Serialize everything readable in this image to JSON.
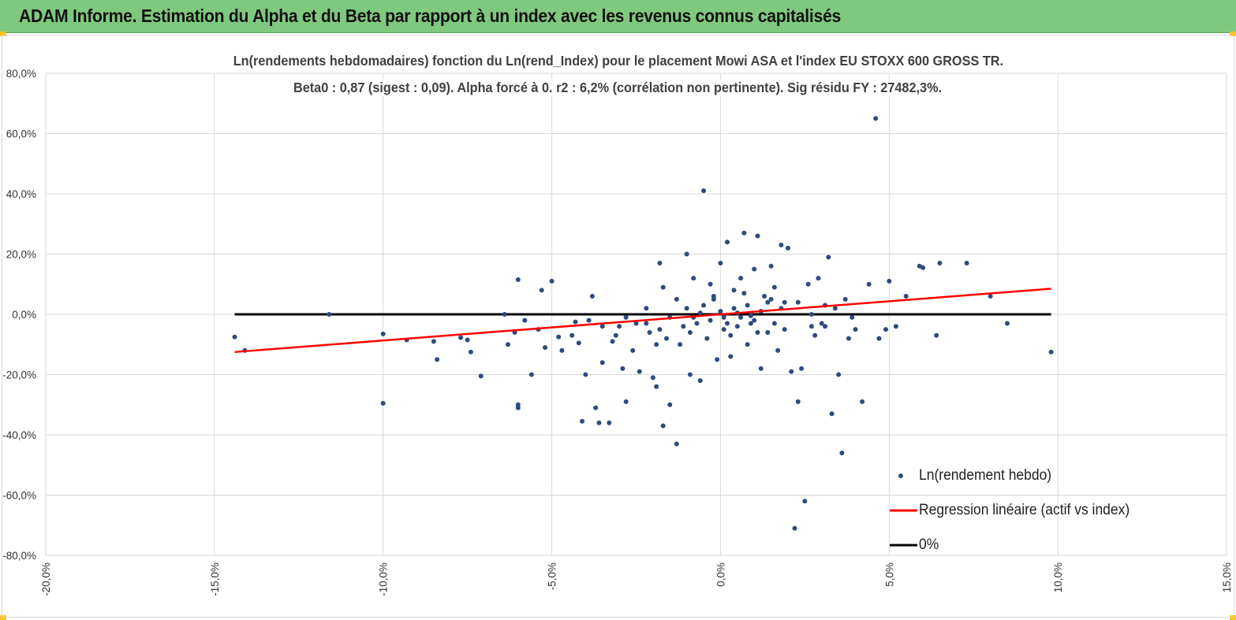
{
  "header": {
    "title": "ADAM Informe. Estimation du Alpha et du Beta par rapport à un index avec les revenus connus capitalisés"
  },
  "chart_data": {
    "type": "scatter",
    "title": "Ln(rendements hebdomadaires) fonction du Ln(rend_Index) pour le placement Mowi ASA et l'index EU STOXX 600 GROSS TR.",
    "subtitle": "Beta0 : 0,87 (sigest : 0,09). Alpha forcé à 0. r2 : 6,2% (corrélation non pertinente). Sig résidu FY : 27482,3%.",
    "xlabel": "",
    "ylabel": "",
    "xlim": [
      -20,
      15
    ],
    "ylim": [
      -80,
      80
    ],
    "x_ticks": [
      "-20,0%",
      "-15,0%",
      "-10,0%",
      "-5,0%",
      "0,0%",
      "5,0%",
      "10,0%",
      "15,0%"
    ],
    "y_ticks": [
      "80,0%",
      "60,0%",
      "40,0%",
      "20,0%",
      "0,0%",
      "-20,0%",
      "-40,0%",
      "-60,0%",
      "-80,0%"
    ],
    "grid": true,
    "legend_position": "bottom-right",
    "colors": {
      "points": "#2e4a7d",
      "regression": "#ff0000",
      "zero": "#000000",
      "header_bg": "#7fc97f"
    },
    "legend": [
      "Ln(rendement hebdo)",
      "Regression linéaire (actif vs index)",
      "0%"
    ],
    "series": [
      {
        "name": "Ln(rendement hebdo)",
        "points": [
          [
            -14.4,
            -7.5
          ],
          [
            -14.1,
            -12
          ],
          [
            -11.6,
            0
          ],
          [
            -10.0,
            -6.5
          ],
          [
            -10.0,
            -29.5
          ],
          [
            -9.3,
            -8.5
          ],
          [
            -8.5,
            -9
          ],
          [
            -8.4,
            -15
          ],
          [
            -7.7,
            -7.7
          ],
          [
            -7.5,
            -8.5
          ],
          [
            -7.4,
            -12.5
          ],
          [
            -7.1,
            -20.5
          ],
          [
            -6.4,
            0
          ],
          [
            -6.3,
            -10
          ],
          [
            -6.1,
            -6
          ],
          [
            -6.0,
            11.5
          ],
          [
            -6.0,
            -31
          ],
          [
            -6.0,
            -30
          ],
          [
            -5.8,
            -2
          ],
          [
            -5.6,
            -20
          ],
          [
            -5.4,
            -5
          ],
          [
            -5.3,
            8
          ],
          [
            -5.2,
            -11
          ],
          [
            -5.0,
            11
          ],
          [
            -4.8,
            -7.5
          ],
          [
            -4.7,
            -12
          ],
          [
            -4.4,
            -7
          ],
          [
            -4.3,
            -2.5
          ],
          [
            -4.2,
            -9.5
          ],
          [
            -4.1,
            -35.5
          ],
          [
            -4.0,
            -20
          ],
          [
            -3.9,
            -2
          ],
          [
            -3.8,
            6
          ],
          [
            -3.7,
            -31
          ],
          [
            -3.6,
            -36
          ],
          [
            -3.5,
            -16
          ],
          [
            -3.3,
            -36
          ],
          [
            -3.2,
            -9
          ],
          [
            -3.1,
            -7
          ],
          [
            -3.0,
            -4
          ],
          [
            -2.9,
            -18
          ],
          [
            -2.8,
            -29
          ],
          [
            -2.6,
            -12
          ],
          [
            -2.4,
            -19
          ],
          [
            -2.2,
            -3
          ],
          [
            -2.1,
            -6
          ],
          [
            -2.0,
            -21
          ],
          [
            -1.9,
            -10
          ],
          [
            -1.9,
            -24
          ],
          [
            -1.8,
            17
          ],
          [
            -1.7,
            9
          ],
          [
            -1.7,
            -37
          ],
          [
            -1.6,
            -8
          ],
          [
            -1.5,
            -30
          ],
          [
            -1.3,
            -43
          ],
          [
            -1.2,
            -10
          ],
          [
            -1.1,
            -4
          ],
          [
            -1.0,
            20
          ],
          [
            -0.9,
            -20
          ],
          [
            -0.8,
            12
          ],
          [
            -0.7,
            -3
          ],
          [
            -0.6,
            -22
          ],
          [
            -0.5,
            41
          ],
          [
            -0.4,
            -8
          ],
          [
            -0.3,
            10
          ],
          [
            -0.2,
            5
          ],
          [
            -0.1,
            -15
          ],
          [
            0.0,
            17
          ],
          [
            0.1,
            -5
          ],
          [
            0.2,
            24
          ],
          [
            0.3,
            -14
          ],
          [
            0.4,
            8
          ],
          [
            0.5,
            -4
          ],
          [
            0.6,
            12
          ],
          [
            0.7,
            27
          ],
          [
            0.8,
            -10
          ],
          [
            0.9,
            -3
          ],
          [
            1.0,
            15
          ],
          [
            1.1,
            26
          ],
          [
            1.2,
            -18
          ],
          [
            1.3,
            6
          ],
          [
            1.4,
            -6
          ],
          [
            1.5,
            16
          ],
          [
            1.6,
            9
          ],
          [
            1.7,
            -12
          ],
          [
            1.8,
            23
          ],
          [
            1.9,
            4
          ],
          [
            2.0,
            22
          ],
          [
            2.1,
            -19
          ],
          [
            2.2,
            -71
          ],
          [
            2.3,
            -29
          ],
          [
            2.4,
            -18
          ],
          [
            2.5,
            -62
          ],
          [
            2.6,
            10
          ],
          [
            2.7,
            0
          ],
          [
            2.8,
            -7
          ],
          [
            2.9,
            12
          ],
          [
            3.0,
            -3
          ],
          [
            3.1,
            -4
          ],
          [
            3.2,
            19
          ],
          [
            3.3,
            -33
          ],
          [
            3.4,
            2
          ],
          [
            3.5,
            -20
          ],
          [
            3.6,
            -46
          ],
          [
            3.7,
            5
          ],
          [
            3.8,
            -8
          ],
          [
            3.9,
            -1
          ],
          [
            4.0,
            -5
          ],
          [
            4.2,
            -29
          ],
          [
            4.4,
            10
          ],
          [
            4.6,
            65
          ],
          [
            4.7,
            -8
          ],
          [
            4.9,
            -5
          ],
          [
            5.0,
            11
          ],
          [
            5.2,
            -4
          ],
          [
            5.5,
            6
          ],
          [
            5.9,
            16
          ],
          [
            6.0,
            15.5
          ],
          [
            6.4,
            -7
          ],
          [
            6.5,
            17
          ],
          [
            7.3,
            17
          ],
          [
            8.0,
            6
          ],
          [
            8.5,
            -3
          ],
          [
            9.8,
            -12.5
          ],
          [
            -1.5,
            -1
          ],
          [
            -1.0,
            2
          ],
          [
            -0.8,
            -1
          ],
          [
            -0.5,
            3
          ],
          [
            -0.3,
            -2
          ],
          [
            0.0,
            1
          ],
          [
            0.2,
            -3
          ],
          [
            0.4,
            2
          ],
          [
            0.6,
            -1
          ],
          [
            0.8,
            3
          ],
          [
            1.0,
            -2
          ],
          [
            1.2,
            1
          ],
          [
            1.4,
            4
          ],
          [
            1.6,
            -3
          ],
          [
            1.8,
            2
          ],
          [
            -2.5,
            -3
          ],
          [
            -2.2,
            2
          ],
          [
            -1.8,
            -5
          ],
          [
            -1.3,
            5
          ],
          [
            -0.9,
            -6
          ],
          [
            -0.2,
            6
          ],
          [
            0.3,
            -7
          ],
          [
            0.7,
            7
          ],
          [
            1.1,
            -6
          ],
          [
            1.5,
            5
          ],
          [
            1.9,
            -5
          ],
          [
            2.3,
            4
          ],
          [
            2.7,
            -4
          ],
          [
            3.1,
            3
          ],
          [
            -3.5,
            -4
          ],
          [
            -2.8,
            -1
          ],
          [
            0.1,
            -1
          ],
          [
            0.5,
            0.5
          ],
          [
            -0.6,
            0.5
          ],
          [
            0.9,
            -0.5
          ]
        ]
      },
      {
        "name": "Regression linéaire (actif vs index)",
        "x": [
          -14.4,
          9.8
        ],
        "y": [
          -12.5,
          8.5
        ]
      },
      {
        "name": "0%",
        "x": [
          -14.4,
          9.8
        ],
        "y": [
          0,
          0
        ]
      }
    ]
  }
}
